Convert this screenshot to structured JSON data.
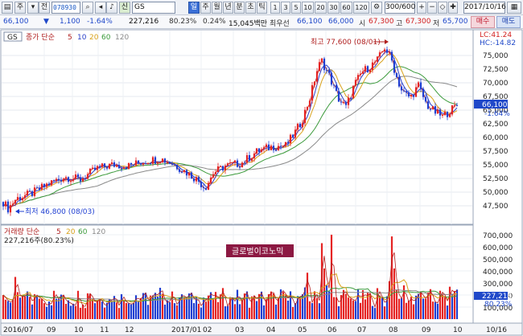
{
  "toolbar": {
    "stock_code": "078930",
    "stock_name": "GS",
    "period_buttons": [
      "일",
      "주",
      "월",
      "년",
      "분",
      "초",
      "틱"
    ],
    "interval_buttons": [
      "1",
      "3",
      "5",
      "10",
      "20",
      "30",
      "60",
      "120"
    ],
    "range": "300/600",
    "date": "2017/10/16",
    "left_glyphs": [
      "주",
      "전"
    ],
    "sin": "신"
  },
  "quote": {
    "price": "66,100",
    "change": "1,100",
    "change_pct": "-1.64%",
    "volume": "227,216",
    "volume_ratio": "80.23%",
    "turnover_pct": "0.24%",
    "trade_value": "15,045백만",
    "best_bid_label": "최우선",
    "best_ask": "66,100",
    "best_bid": "66,000",
    "open_label": "시",
    "open": "67,300",
    "high_label": "고",
    "high": "67,300",
    "low_label": "저",
    "low": "65,700",
    "buy_label": "매수",
    "sell_label": "매도"
  },
  "price_panel": {
    "tag": "GS",
    "legend_title": "종가 단순",
    "ma_periods": [
      "5",
      "10",
      "20",
      "60",
      "120"
    ],
    "lc": "LC:41.24",
    "hc": "HC:-14.82",
    "y_ticks": [
      "75,000",
      "72,500",
      "70,000",
      "67,500",
      "65,000",
      "62,500",
      "60,000",
      "57,500",
      "55,000",
      "52,500",
      "50,000",
      "47,500"
    ],
    "current_price": "66,100",
    "current_pct": "-1.64%",
    "high_annotation": "최고 77,600 (08/01)",
    "low_annotation": "최저 46,800 (08/03)"
  },
  "volume_panel": {
    "legend_title": "거래량 단순",
    "ma_periods": [
      "5",
      "20",
      "60",
      "120"
    ],
    "volume_info": "227,216주(80.23%)",
    "y_ticks": [
      "700,000",
      "600,000",
      "500,000",
      "400,000",
      "300,000",
      "200,000",
      "100,000"
    ],
    "current_volume": "227,216",
    "current_pct": "80.23%",
    "watermark": "글로벌이코노믹"
  },
  "x_axis": [
    "2016/07",
    "09",
    "10",
    "11",
    "12",
    "2017/01",
    "02",
    "03",
    "04",
    "05",
    "06",
    "07",
    "08",
    "09",
    "10",
    "10/16"
  ],
  "chart_data": {
    "type": "candlestick",
    "price_anchors": [
      [
        0,
        49000
      ],
      [
        10,
        47000
      ],
      [
        20,
        48800
      ],
      [
        40,
        49800
      ],
      [
        60,
        51500
      ],
      [
        80,
        52800
      ],
      [
        100,
        52300
      ],
      [
        120,
        54300
      ],
      [
        140,
        55000
      ],
      [
        160,
        54800
      ],
      [
        180,
        55700
      ],
      [
        200,
        56100
      ],
      [
        215,
        55200
      ],
      [
        230,
        53800
      ],
      [
        245,
        52300
      ],
      [
        255,
        50800
      ],
      [
        265,
        53500
      ],
      [
        280,
        54800
      ],
      [
        300,
        55300
      ],
      [
        320,
        57500
      ],
      [
        340,
        58400
      ],
      [
        355,
        58500
      ],
      [
        365,
        60500
      ],
      [
        375,
        63000
      ],
      [
        385,
        67200
      ],
      [
        395,
        72800
      ],
      [
        400,
        74000
      ],
      [
        410,
        71000
      ],
      [
        420,
        67200
      ],
      [
        430,
        65500
      ],
      [
        440,
        69500
      ],
      [
        450,
        72000
      ],
      [
        460,
        73000
      ],
      [
        470,
        74300
      ],
      [
        478,
        76500
      ],
      [
        486,
        74500
      ],
      [
        493,
        71000
      ],
      [
        500,
        68300
      ],
      [
        510,
        67300
      ],
      [
        520,
        69500
      ],
      [
        530,
        66000
      ],
      [
        540,
        64700
      ],
      [
        550,
        63800
      ],
      [
        560,
        65000
      ],
      [
        570,
        66100
      ]
    ],
    "volume_pattern": [
      0.22,
      0.35,
      0.18,
      0.28,
      0.12,
      0.4,
      0.2,
      0.3,
      0.15,
      0.25
    ],
    "volume_spikes": [
      [
        18,
        0.5
      ],
      [
        110,
        0.3
      ],
      [
        200,
        0.3
      ],
      [
        380,
        0.55
      ],
      [
        398,
        0.9
      ],
      [
        402,
        0.6
      ],
      [
        405,
        0.4
      ],
      [
        412,
        1.0
      ],
      [
        430,
        0.3
      ],
      [
        444,
        0.35
      ],
      [
        460,
        0.3
      ],
      [
        482,
        0.45
      ],
      [
        486,
        0.98
      ],
      [
        490,
        0.6
      ],
      [
        500,
        0.4
      ],
      [
        520,
        0.3
      ],
      [
        550,
        0.3
      ],
      [
        560,
        0.3
      ],
      [
        568,
        0.35
      ],
      [
        570,
        0.28
      ]
    ]
  },
  "colors": {
    "up": "#e52424",
    "down": "#1f3fd2",
    "ma5": "#b02020",
    "ma10": "#2a3fc9",
    "ma20": "#d9a21a",
    "ma60": "#3b9a3b",
    "ma120": "#8a8a8a",
    "price_tag_bg": "#1f48c9"
  }
}
